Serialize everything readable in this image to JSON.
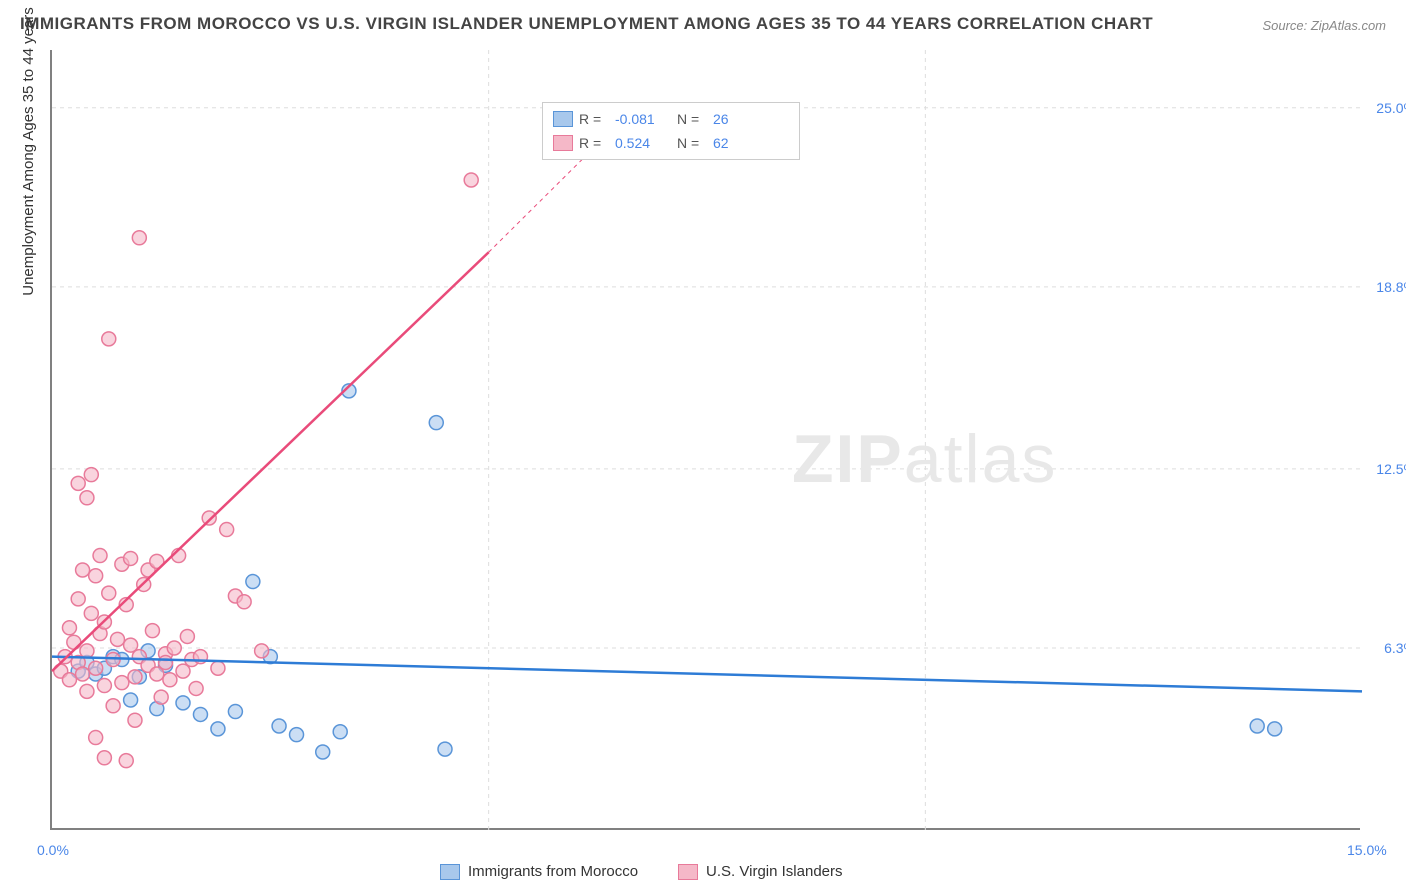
{
  "title": "IMMIGRANTS FROM MOROCCO VS U.S. VIRGIN ISLANDER UNEMPLOYMENT AMONG AGES 35 TO 44 YEARS CORRELATION CHART",
  "source": "Source: ZipAtlas.com",
  "watermark_bold": "ZIP",
  "watermark_rest": "atlas",
  "y_axis_label": "Unemployment Among Ages 35 to 44 years",
  "chart": {
    "type": "scatter",
    "background_color": "#ffffff",
    "grid_color": "#dddddd",
    "axis_color": "#808080",
    "xlim": [
      0,
      15
    ],
    "ylim": [
      0,
      27
    ],
    "x_ticks": [
      {
        "pos": 0.0,
        "label": "0.0%"
      },
      {
        "pos": 15.0,
        "label": "15.0%"
      }
    ],
    "x_minor_ticks": [
      5.0,
      10.0
    ],
    "y_ticks": [
      {
        "pos": 6.3,
        "label": "6.3%"
      },
      {
        "pos": 12.5,
        "label": "12.5%"
      },
      {
        "pos": 18.8,
        "label": "18.8%"
      },
      {
        "pos": 25.0,
        "label": "25.0%"
      }
    ],
    "series": [
      {
        "name": "Immigrants from Morocco",
        "color_fill": "#a8c8ec",
        "color_stroke": "#5a95d8",
        "marker_size": 7,
        "trend_line": {
          "x1": 0,
          "y1": 6.0,
          "x2": 15,
          "y2": 4.8,
          "color": "#2e7cd6",
          "width": 2.5,
          "dash": "none"
        },
        "points": [
          [
            0.3,
            5.5
          ],
          [
            0.4,
            5.8
          ],
          [
            0.5,
            5.4
          ],
          [
            0.6,
            5.6
          ],
          [
            0.7,
            6.0
          ],
          [
            0.8,
            5.9
          ],
          [
            0.9,
            4.5
          ],
          [
            1.0,
            5.3
          ],
          [
            1.1,
            6.2
          ],
          [
            1.2,
            4.2
          ],
          [
            1.3,
            5.7
          ],
          [
            1.5,
            4.4
          ],
          [
            1.7,
            4.0
          ],
          [
            1.9,
            3.5
          ],
          [
            2.1,
            4.1
          ],
          [
            2.3,
            8.6
          ],
          [
            2.5,
            6.0
          ],
          [
            2.6,
            3.6
          ],
          [
            2.8,
            3.3
          ],
          [
            3.1,
            2.7
          ],
          [
            3.3,
            3.4
          ],
          [
            3.4,
            15.2
          ],
          [
            4.4,
            14.1
          ],
          [
            4.5,
            2.8
          ],
          [
            13.8,
            3.6
          ],
          [
            14.0,
            3.5
          ]
        ]
      },
      {
        "name": "U.S. Virgin Islanders",
        "color_fill": "#f5b8c8",
        "color_stroke": "#e87a9a",
        "marker_size": 7,
        "trend_line": {
          "x1": 0,
          "y1": 5.5,
          "x2": 5.0,
          "y2": 20.0,
          "color": "#e94b7a",
          "width": 2.5,
          "dash": "none"
        },
        "trend_line_ext": {
          "x1": 5.0,
          "y1": 20.0,
          "x2": 6.5,
          "y2": 24.5,
          "color": "#e94b7a",
          "width": 1,
          "dash": "4,4"
        },
        "points": [
          [
            0.1,
            5.5
          ],
          [
            0.15,
            6.0
          ],
          [
            0.2,
            5.2
          ],
          [
            0.2,
            7.0
          ],
          [
            0.25,
            6.5
          ],
          [
            0.3,
            5.8
          ],
          [
            0.3,
            8.0
          ],
          [
            0.3,
            12.0
          ],
          [
            0.35,
            5.4
          ],
          [
            0.35,
            9.0
          ],
          [
            0.4,
            6.2
          ],
          [
            0.4,
            4.8
          ],
          [
            0.4,
            11.5
          ],
          [
            0.45,
            7.5
          ],
          [
            0.45,
            12.3
          ],
          [
            0.5,
            5.6
          ],
          [
            0.5,
            8.8
          ],
          [
            0.5,
            3.2
          ],
          [
            0.55,
            6.8
          ],
          [
            0.55,
            9.5
          ],
          [
            0.6,
            5.0
          ],
          [
            0.6,
            7.2
          ],
          [
            0.6,
            2.5
          ],
          [
            0.65,
            8.2
          ],
          [
            0.65,
            17.0
          ],
          [
            0.7,
            5.9
          ],
          [
            0.7,
            4.3
          ],
          [
            0.75,
            6.6
          ],
          [
            0.8,
            9.2
          ],
          [
            0.8,
            5.1
          ],
          [
            0.85,
            7.8
          ],
          [
            0.85,
            2.4
          ],
          [
            0.9,
            9.4
          ],
          [
            0.9,
            6.4
          ],
          [
            0.95,
            5.3
          ],
          [
            0.95,
            3.8
          ],
          [
            1.0,
            20.5
          ],
          [
            1.0,
            6.0
          ],
          [
            1.05,
            8.5
          ],
          [
            1.1,
            5.7
          ],
          [
            1.1,
            9.0
          ],
          [
            1.15,
            6.9
          ],
          [
            1.2,
            5.4
          ],
          [
            1.2,
            9.3
          ],
          [
            1.25,
            4.6
          ],
          [
            1.3,
            6.1
          ],
          [
            1.3,
            5.8
          ],
          [
            1.35,
            5.2
          ],
          [
            1.4,
            6.3
          ],
          [
            1.45,
            9.5
          ],
          [
            1.5,
            5.5
          ],
          [
            1.55,
            6.7
          ],
          [
            1.6,
            5.9
          ],
          [
            1.65,
            4.9
          ],
          [
            1.7,
            6.0
          ],
          [
            1.8,
            10.8
          ],
          [
            1.9,
            5.6
          ],
          [
            2.0,
            10.4
          ],
          [
            2.1,
            8.1
          ],
          [
            2.2,
            7.9
          ],
          [
            2.4,
            6.2
          ],
          [
            4.8,
            22.5
          ]
        ]
      }
    ]
  },
  "legend_top": {
    "rows": [
      {
        "swatch_fill": "#a8c8ec",
        "swatch_border": "#5a95d8",
        "r_label": "R =",
        "r_val": "-0.081",
        "n_label": "N =",
        "n_val": "26"
      },
      {
        "swatch_fill": "#f5b8c8",
        "swatch_border": "#e87a9a",
        "r_label": "R =",
        "r_val": "0.524",
        "n_label": "N =",
        "n_val": "62"
      }
    ]
  },
  "legend_bottom": [
    {
      "swatch_fill": "#a8c8ec",
      "swatch_border": "#5a95d8",
      "label": "Immigrants from Morocco"
    },
    {
      "swatch_fill": "#f5b8c8",
      "swatch_border": "#e87a9a",
      "label": "U.S. Virgin Islanders"
    }
  ]
}
